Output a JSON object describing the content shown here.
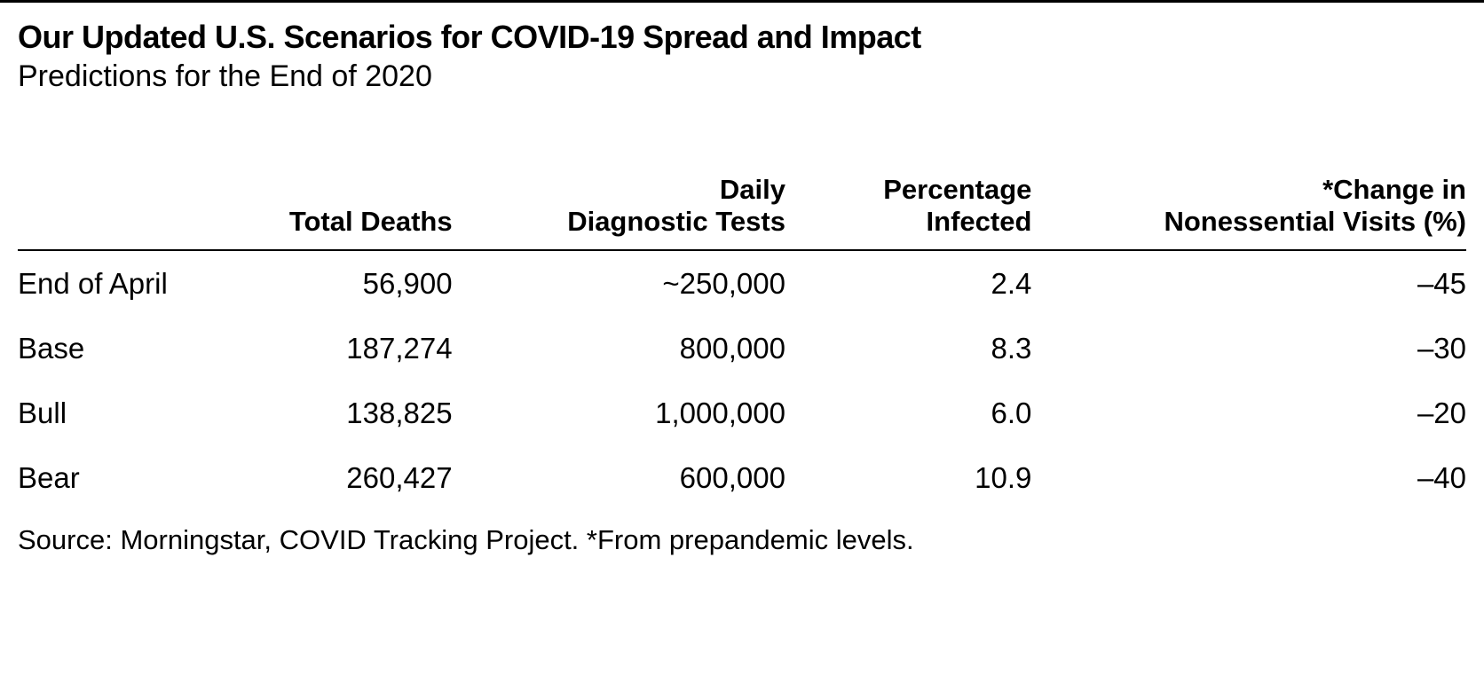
{
  "header": {
    "title": "Our Updated U.S. Scenarios for COVID-19 Spread and Impact",
    "subtitle": "Predictions for the End of 2020"
  },
  "table": {
    "type": "table",
    "background_color": "#ffffff",
    "text_color": "#000000",
    "border_color": "#000000",
    "header_fontsize": 31,
    "header_fontweight": 700,
    "body_fontsize": 33,
    "body_fontweight": 300,
    "column_widths_pct": [
      13,
      17,
      23,
      17,
      30
    ],
    "alignments": [
      "left",
      "right",
      "right",
      "right",
      "right"
    ],
    "columns": [
      "",
      "Total Deaths",
      "Daily\nDiagnostic Tests",
      "Percentage\nInfected",
      "*Change in\nNonessential Visits (%)"
    ],
    "rows": [
      {
        "label": "End of April",
        "total_deaths": "56,900",
        "daily_tests": "~250,000",
        "pct_infected": "2.4",
        "change_visits": "–45"
      },
      {
        "label": "Base",
        "total_deaths": "187,274",
        "daily_tests": "800,000",
        "pct_infected": "8.3",
        "change_visits": "–30"
      },
      {
        "label": "Bull",
        "total_deaths": "138,825",
        "daily_tests": "1,000,000",
        "pct_infected": "6.0",
        "change_visits": "–20"
      },
      {
        "label": "Bear",
        "total_deaths": "260,427",
        "daily_tests": "600,000",
        "pct_infected": "10.9",
        "change_visits": "–40"
      }
    ]
  },
  "footer": {
    "source": "Source: Morningstar, COVID Tracking Project. *From prepandemic levels."
  }
}
